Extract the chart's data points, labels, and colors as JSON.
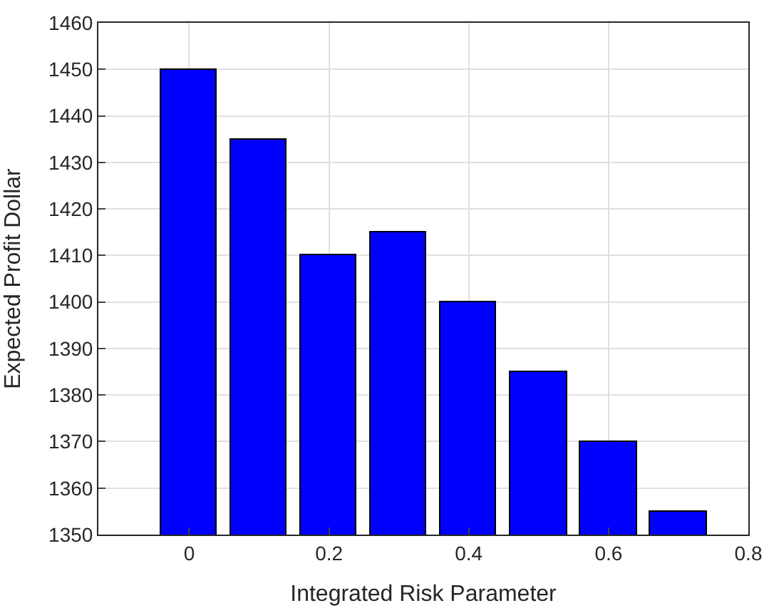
{
  "chart_data": {
    "type": "bar",
    "xlabel": "Integrated Risk Parameter",
    "ylabel": "Expected Profit Dollar",
    "x": [
      0,
      0.1,
      0.2,
      0.3,
      0.4,
      0.5,
      0.6,
      0.7
    ],
    "values": [
      1450,
      1435,
      1410,
      1415,
      1400,
      1385,
      1370,
      1355
    ],
    "color": "#0000ff",
    "xlim": [
      -0.13,
      0.8
    ],
    "xticks": [
      0,
      0.2,
      0.4,
      0.6,
      0.8
    ],
    "ylim": [
      1350,
      1460
    ],
    "yticks": [
      1350,
      1360,
      1370,
      1380,
      1390,
      1400,
      1410,
      1420,
      1430,
      1440,
      1450,
      1460
    ],
    "grid": true
  }
}
